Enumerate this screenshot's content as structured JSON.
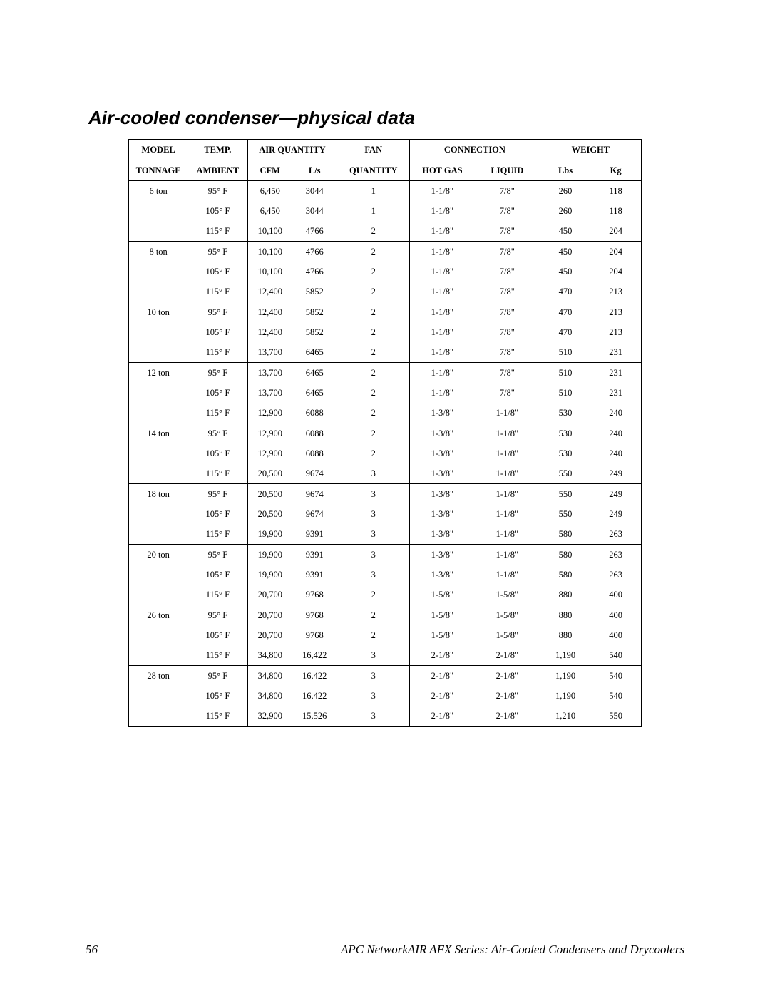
{
  "title": "Air-cooled condenser—physical data",
  "footer": {
    "page_number": "56",
    "publication": "APC NetworkAIR AFX Series: Air-Cooled Condensers and Drycoolers"
  },
  "table": {
    "type": "table",
    "header_row1": {
      "model": "MODEL",
      "temp": "TEMP.",
      "air_quantity": "AIR QUANTITY",
      "fan": "FAN",
      "connection": "CONNECTION",
      "weight": "WEIGHT"
    },
    "header_row2": {
      "tonnage": "TONNAGE",
      "ambient": "AMBIENT",
      "cfm": "CFM",
      "ls": "L/s",
      "quantity": "QUANTITY",
      "hotgas": "HOT GAS",
      "liquid": "LIQUID",
      "lbs": "Lbs",
      "kg": "Kg"
    },
    "colors": {
      "border": "#000000",
      "background": "#ffffff",
      "text": "#000000"
    },
    "font": {
      "body_size_pt": 9,
      "header_size_pt": 9,
      "header_weight": "bold",
      "title_size_pt": 19,
      "title_weight": "bold",
      "title_style": "italic",
      "footer_size_pt": 12,
      "footer_style": "italic"
    },
    "groups": [
      {
        "tonnage": "6 ton",
        "rows": [
          {
            "ambient": "95° F",
            "cfm": "6,450",
            "ls": "3044",
            "fan": "1",
            "hotgas": "1-1/8\"",
            "liquid": "7/8\"",
            "lbs": "260",
            "kg": "118"
          },
          {
            "ambient": "105° F",
            "cfm": "6,450",
            "ls": "3044",
            "fan": "1",
            "hotgas": "1-1/8\"",
            "liquid": "7/8\"",
            "lbs": "260",
            "kg": "118"
          },
          {
            "ambient": "115° F",
            "cfm": "10,100",
            "ls": "4766",
            "fan": "2",
            "hotgas": "1-1/8\"",
            "liquid": "7/8\"",
            "lbs": "450",
            "kg": "204"
          }
        ]
      },
      {
        "tonnage": "8 ton",
        "rows": [
          {
            "ambient": "95° F",
            "cfm": "10,100",
            "ls": "4766",
            "fan": "2",
            "hotgas": "1-1/8\"",
            "liquid": "7/8\"",
            "lbs": "450",
            "kg": "204"
          },
          {
            "ambient": "105° F",
            "cfm": "10,100",
            "ls": "4766",
            "fan": "2",
            "hotgas": "1-1/8\"",
            "liquid": "7/8\"",
            "lbs": "450",
            "kg": "204"
          },
          {
            "ambient": "115° F",
            "cfm": "12,400",
            "ls": "5852",
            "fan": "2",
            "hotgas": "1-1/8\"",
            "liquid": "7/8\"",
            "lbs": "470",
            "kg": "213"
          }
        ]
      },
      {
        "tonnage": "10 ton",
        "rows": [
          {
            "ambient": "95° F",
            "cfm": "12,400",
            "ls": "5852",
            "fan": "2",
            "hotgas": "1-1/8\"",
            "liquid": "7/8\"",
            "lbs": "470",
            "kg": "213"
          },
          {
            "ambient": "105° F",
            "cfm": "12,400",
            "ls": "5852",
            "fan": "2",
            "hotgas": "1-1/8\"",
            "liquid": "7/8\"",
            "lbs": "470",
            "kg": "213"
          },
          {
            "ambient": "115° F",
            "cfm": "13,700",
            "ls": "6465",
            "fan": "2",
            "hotgas": "1-1/8\"",
            "liquid": "7/8\"",
            "lbs": "510",
            "kg": "231"
          }
        ]
      },
      {
        "tonnage": "12 ton",
        "rows": [
          {
            "ambient": "95° F",
            "cfm": "13,700",
            "ls": "6465",
            "fan": "2",
            "hotgas": "1-1/8\"",
            "liquid": "7/8\"",
            "lbs": "510",
            "kg": "231"
          },
          {
            "ambient": "105° F",
            "cfm": "13,700",
            "ls": "6465",
            "fan": "2",
            "hotgas": "1-1/8\"",
            "liquid": "7/8\"",
            "lbs": "510",
            "kg": "231"
          },
          {
            "ambient": "115° F",
            "cfm": "12,900",
            "ls": "6088",
            "fan": "2",
            "hotgas": "1-3/8\"",
            "liquid": "1-1/8\"",
            "lbs": "530",
            "kg": "240"
          }
        ]
      },
      {
        "tonnage": "14 ton",
        "rows": [
          {
            "ambient": "95° F",
            "cfm": "12,900",
            "ls": "6088",
            "fan": "2",
            "hotgas": "1-3/8\"",
            "liquid": "1-1/8\"",
            "lbs": "530",
            "kg": "240"
          },
          {
            "ambient": "105° F",
            "cfm": "12,900",
            "ls": "6088",
            "fan": "2",
            "hotgas": "1-3/8\"",
            "liquid": "1-1/8\"",
            "lbs": "530",
            "kg": "240"
          },
          {
            "ambient": "115° F",
            "cfm": "20,500",
            "ls": "9674",
            "fan": "3",
            "hotgas": "1-3/8\"",
            "liquid": "1-1/8\"",
            "lbs": "550",
            "kg": "249"
          }
        ]
      },
      {
        "tonnage": "18 ton",
        "rows": [
          {
            "ambient": "95° F",
            "cfm": "20,500",
            "ls": "9674",
            "fan": "3",
            "hotgas": "1-3/8\"",
            "liquid": "1-1/8\"",
            "lbs": "550",
            "kg": "249"
          },
          {
            "ambient": "105° F",
            "cfm": "20,500",
            "ls": "9674",
            "fan": "3",
            "hotgas": "1-3/8\"",
            "liquid": "1-1/8\"",
            "lbs": "550",
            "kg": "249"
          },
          {
            "ambient": "115° F",
            "cfm": "19,900",
            "ls": "9391",
            "fan": "3",
            "hotgas": "1-3/8\"",
            "liquid": "1-1/8\"",
            "lbs": "580",
            "kg": "263"
          }
        ]
      },
      {
        "tonnage": "20 ton",
        "rows": [
          {
            "ambient": "95° F",
            "cfm": "19,900",
            "ls": "9391",
            "fan": "3",
            "hotgas": "1-3/8\"",
            "liquid": "1-1/8\"",
            "lbs": "580",
            "kg": "263"
          },
          {
            "ambient": "105° F",
            "cfm": "19,900",
            "ls": "9391",
            "fan": "3",
            "hotgas": "1-3/8\"",
            "liquid": "1-1/8\"",
            "lbs": "580",
            "kg": "263"
          },
          {
            "ambient": "115° F",
            "cfm": "20,700",
            "ls": "9768",
            "fan": "2",
            "hotgas": "1-5/8\"",
            "liquid": "1-5/8\"",
            "lbs": "880",
            "kg": "400"
          }
        ]
      },
      {
        "tonnage": "26 ton",
        "rows": [
          {
            "ambient": "95° F",
            "cfm": "20,700",
            "ls": "9768",
            "fan": "2",
            "hotgas": "1-5/8\"",
            "liquid": "1-5/8\"",
            "lbs": "880",
            "kg": "400"
          },
          {
            "ambient": "105° F",
            "cfm": "20,700",
            "ls": "9768",
            "fan": "2",
            "hotgas": "1-5/8\"",
            "liquid": "1-5/8\"",
            "lbs": "880",
            "kg": "400"
          },
          {
            "ambient": "115° F",
            "cfm": "34,800",
            "ls": "16,422",
            "fan": "3",
            "hotgas": "2-1/8\"",
            "liquid": "2-1/8\"",
            "lbs": "1,190",
            "kg": "540"
          }
        ]
      },
      {
        "tonnage": "28 ton",
        "rows": [
          {
            "ambient": "95° F",
            "cfm": "34,800",
            "ls": "16,422",
            "fan": "3",
            "hotgas": "2-1/8\"",
            "liquid": "2-1/8\"",
            "lbs": "1,190",
            "kg": "540"
          },
          {
            "ambient": "105° F",
            "cfm": "34,800",
            "ls": "16,422",
            "fan": "3",
            "hotgas": "2-1/8\"",
            "liquid": "2-1/8\"",
            "lbs": "1,190",
            "kg": "540"
          },
          {
            "ambient": "115° F",
            "cfm": "32,900",
            "ls": "15,526",
            "fan": "3",
            "hotgas": "2-1/8\"",
            "liquid": "2-1/8\"",
            "lbs": "1,210",
            "kg": "550"
          }
        ]
      }
    ]
  }
}
